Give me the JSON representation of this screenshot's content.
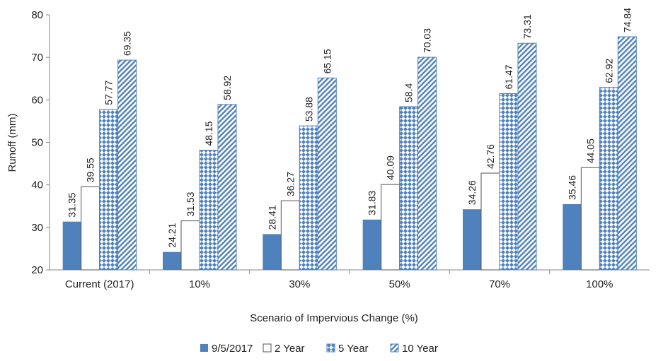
{
  "chart_data": {
    "type": "bar",
    "title": "",
    "xlabel": "Scenario of Impervious Change (%)",
    "ylabel": "Runoff (mm)",
    "ylim": [
      20,
      80
    ],
    "yticks": [
      20,
      30,
      40,
      50,
      60,
      70,
      80
    ],
    "categories": [
      "Current (2017)",
      "10%",
      "30%",
      "50%",
      "70%",
      "100%"
    ],
    "series": [
      {
        "name": "9/5/2017",
        "values": [
          31.35,
          24.21,
          28.41,
          31.83,
          34.26,
          35.46
        ],
        "labels": [
          "31.35",
          "24.21",
          "28.41",
          "31.83",
          "34.26",
          "35.46"
        ],
        "color": "#4f81bd",
        "pattern": "solid"
      },
      {
        "name": "2 Year",
        "values": [
          39.55,
          31.53,
          36.27,
          40.09,
          42.76,
          44.05
        ],
        "labels": [
          "39.55",
          "31.53",
          "36.27",
          "40.09",
          "42.76",
          "44.05"
        ],
        "color": "#ffffff",
        "pattern": "none"
      },
      {
        "name": "5 Year",
        "values": [
          57.77,
          48.15,
          53.88,
          58.4,
          61.47,
          62.92
        ],
        "labels": [
          "57.77",
          "48.15",
          "53.88",
          "58.4",
          "61.47",
          "62.92"
        ],
        "color": "#4f81bd",
        "pattern": "diamond"
      },
      {
        "name": "10 Year",
        "values": [
          69.35,
          58.92,
          65.15,
          70.03,
          73.31,
          74.84
        ],
        "labels": [
          "69.35",
          "58.92",
          "65.15",
          "70.03",
          "73.31",
          "74.84"
        ],
        "color": "#4f81bd",
        "pattern": "diagonal"
      }
    ],
    "legend_position": "bottom",
    "grid": false
  }
}
